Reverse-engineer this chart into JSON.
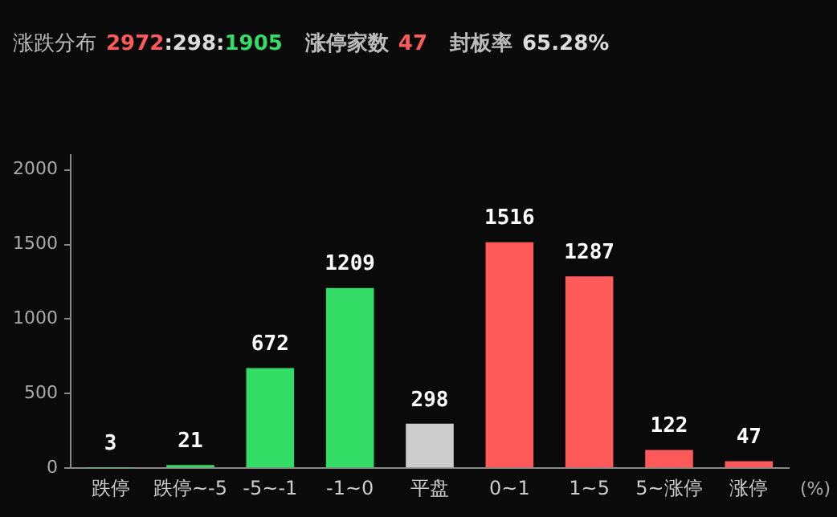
{
  "chart_data": {
    "type": "bar",
    "title": "涨跌分布",
    "annotations": [
      "2972",
      ":298:",
      "1905",
      "涨停家数",
      "47",
      "封板率",
      "65.28%"
    ],
    "xlabel": "(%)",
    "categories": [
      "跌停",
      "跌停~-5",
      "-5~-1",
      "-1~0",
      "平盘",
      "0~1",
      "1~5",
      "5~涨停",
      "涨停"
    ],
    "values": [
      3,
      21,
      672,
      1209,
      298,
      1516,
      1287,
      122,
      47
    ],
    "colors": [
      "#33dd66",
      "#33dd66",
      "#33dd66",
      "#33dd66",
      "#cccccc",
      "#ff5a5a",
      "#ff5a5a",
      "#ff5a5a",
      "#ff5a5a"
    ],
    "ylim": [
      0,
      2100
    ],
    "yticks": [
      0,
      500,
      1000,
      1500,
      2000
    ],
    "grid": false,
    "legend": false,
    "data_labels": true
  }
}
